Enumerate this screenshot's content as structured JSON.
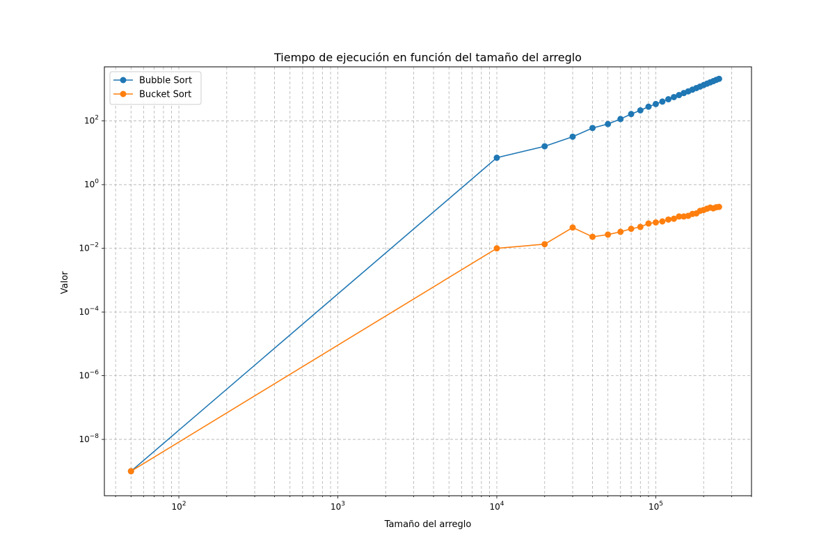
{
  "chart_data": {
    "type": "line",
    "title": "Tiempo de ejecución en función del tamaño del arreglo",
    "xlabel": "Tamaño del arreglo",
    "ylabel": "Valor",
    "xscale": "log",
    "yscale": "log",
    "xlim": [
      34,
      400000
    ],
    "ylim": [
      1e-09,
      5000
    ],
    "grid": true,
    "legend_position": "top-left",
    "x_ticks": [
      {
        "value": 100,
        "base": "10",
        "exp": "2"
      },
      {
        "value": 1000,
        "base": "10",
        "exp": "3"
      },
      {
        "value": 10000,
        "base": "10",
        "exp": "4"
      },
      {
        "value": 100000,
        "base": "10",
        "exp": "5"
      }
    ],
    "y_ticks": [
      {
        "value": 1e-08,
        "base": "10",
        "exp": "−8"
      },
      {
        "value": 1e-06,
        "base": "10",
        "exp": "−6"
      },
      {
        "value": 0.0001,
        "base": "10",
        "exp": "−4"
      },
      {
        "value": 0.01,
        "base": "10",
        "exp": "−2"
      },
      {
        "value": 1,
        "base": "10",
        "exp": "0"
      },
      {
        "value": 100,
        "base": "10",
        "exp": "2"
      }
    ],
    "x": [
      50,
      10000,
      20000,
      30000,
      40000,
      50000,
      60000,
      70000,
      80000,
      90000,
      100000,
      110000,
      120000,
      130000,
      140000,
      150000,
      160000,
      170000,
      180000,
      190000,
      200000,
      210000,
      220000,
      230000,
      240000,
      250000
    ],
    "series": [
      {
        "name": "Bubble Sort",
        "color": "#1f77b4",
        "values": [
          1e-09,
          7,
          16,
          32,
          60,
          80,
          115,
          165,
          215,
          280,
          340,
          405,
          480,
          560,
          650,
          750,
          850,
          960,
          1080,
          1200,
          1340,
          1480,
          1630,
          1780,
          1950,
          2100
        ]
      },
      {
        "name": "Bucket Sort",
        "color": "#ff7f0e",
        "values": [
          1e-09,
          0.01,
          0.0135,
          0.045,
          0.023,
          0.027,
          0.033,
          0.041,
          0.047,
          0.06,
          0.065,
          0.07,
          0.08,
          0.085,
          0.1,
          0.1,
          0.105,
          0.12,
          0.125,
          0.15,
          0.16,
          0.175,
          0.19,
          0.18,
          0.195,
          0.2
        ]
      }
    ]
  }
}
